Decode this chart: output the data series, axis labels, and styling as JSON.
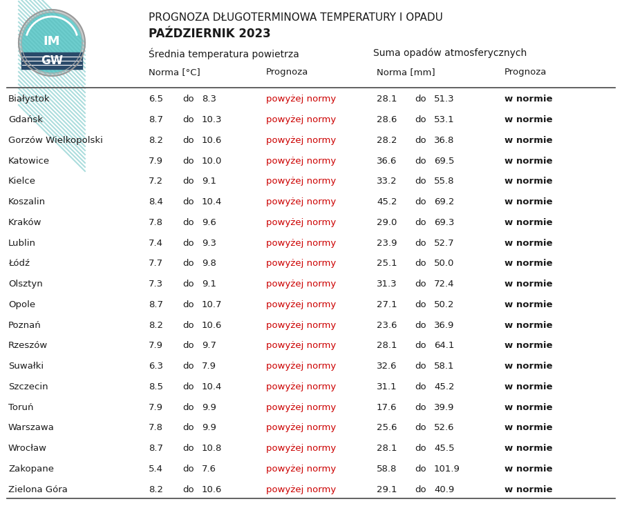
{
  "title_line1": "PROGNOZA DŁUGOTERMINOWA TEMPERATURY I OPADU",
  "title_line2": "PAŹDZIERNIK 2023",
  "header_srednia": "Średnia temperatura powietrza",
  "header_suma": "Suma opadów atmosferycznych",
  "subheader_norma_temp": "Norma [°C]",
  "subheader_norma_precip": "Norma [mm]",
  "subheader_prognoza": "Prognoza",
  "cities": [
    "Białystok",
    "Gdańsk",
    "Gorzów Wielkopolski",
    "Katowice",
    "Kielce",
    "Koszalin",
    "Kraków",
    "Lublin",
    "Łódź",
    "Olsztyn",
    "Opole",
    "Poznań",
    "Rzeszów",
    "Suwałki",
    "Szczecin",
    "Toruń",
    "Warszawa",
    "Wrocław",
    "Zakopane",
    "Zielona Góra"
  ],
  "temp_norma_low": [
    6.5,
    8.7,
    8.2,
    7.9,
    7.2,
    8.4,
    7.8,
    7.4,
    7.7,
    7.3,
    8.7,
    8.2,
    7.9,
    6.3,
    8.5,
    7.9,
    7.8,
    8.7,
    5.4,
    8.2
  ],
  "temp_norma_high": [
    8.3,
    10.3,
    10.6,
    10.0,
    9.1,
    10.4,
    9.6,
    9.3,
    9.8,
    9.1,
    10.7,
    10.6,
    9.7,
    7.9,
    10.4,
    9.9,
    9.9,
    10.8,
    7.6,
    10.6
  ],
  "temp_prognoza": [
    "powyżej normy",
    "powyżej normy",
    "powyżej normy",
    "powyżej normy",
    "powyżej normy",
    "powyżej normy",
    "powyżej normy",
    "powyżej normy",
    "powyżej normy",
    "powyżej normy",
    "powyżej normy",
    "powyżej normy",
    "powyżej normy",
    "powyżej normy",
    "powyżej normy",
    "powyżej normy",
    "powyżej normy",
    "powyżej normy",
    "powyżej normy",
    "powyżej normy"
  ],
  "precip_norma_low": [
    28.1,
    28.6,
    28.2,
    36.6,
    33.2,
    45.2,
    29.0,
    23.9,
    25.1,
    31.3,
    27.1,
    23.6,
    28.1,
    32.6,
    31.1,
    17.6,
    25.6,
    28.1,
    58.8,
    29.1
  ],
  "precip_norma_high": [
    51.3,
    53.1,
    36.8,
    69.5,
    55.8,
    69.2,
    69.3,
    52.7,
    50.0,
    72.4,
    50.2,
    36.9,
    64.1,
    58.1,
    45.2,
    39.9,
    52.6,
    45.5,
    101.9,
    40.9
  ],
  "precip_prognoza": [
    "w normie",
    "w normie",
    "w normie",
    "w normie",
    "w normie",
    "w normie",
    "w normie",
    "w normie",
    "w normie",
    "w normie",
    "w normie",
    "w normie",
    "w normie",
    "w normie",
    "w normie",
    "w normie",
    "w normie",
    "w normie",
    "w normie",
    "w normie"
  ],
  "red_color": "#cc0000",
  "black_color": "#1a1a1a",
  "bg_color": "#ffffff",
  "logo_outer_color": "#aaaaaa",
  "logo_teal_light": "#6ecece",
  "logo_teal_dark": "#3ab0b0",
  "logo_navy": "#2a4a6a",
  "logo_text_color": "#ffffff"
}
